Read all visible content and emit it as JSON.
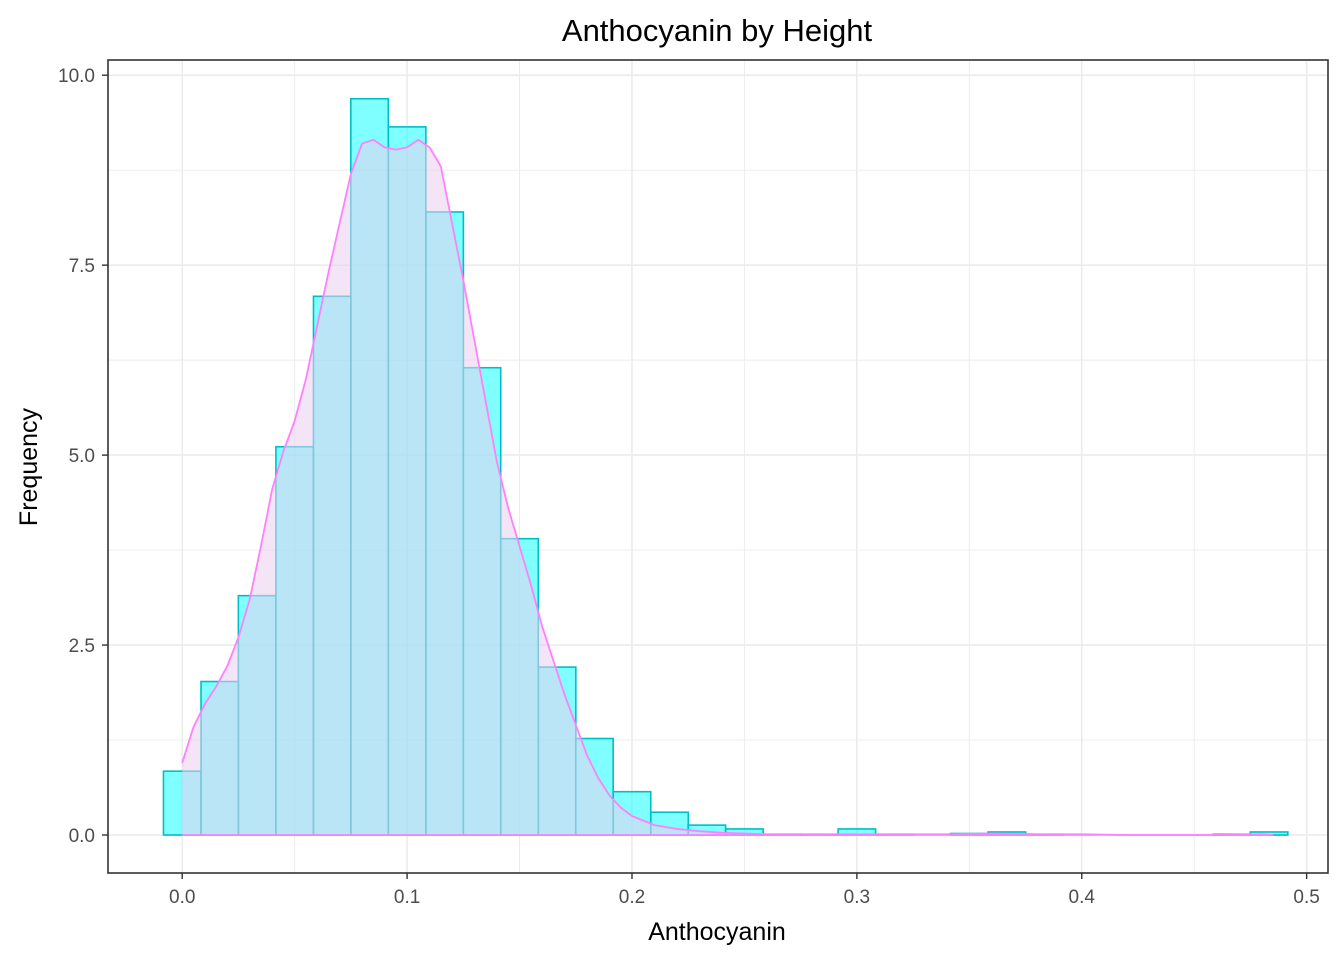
{
  "chart_data": {
    "type": "bar",
    "title": "Anthocyanin by Height",
    "xlabel": "Anthocyanin",
    "ylabel": "Frequency",
    "xlim": [
      -0.033,
      0.5095
    ],
    "ylim": [
      -0.5,
      10.2
    ],
    "x_ticks": [
      0.0,
      0.1,
      0.2,
      0.3,
      0.4,
      0.5
    ],
    "x_tick_labels": [
      "0.0",
      "0.1",
      "0.2",
      "0.3",
      "0.4",
      "0.5"
    ],
    "y_ticks": [
      0.0,
      2.5,
      5.0,
      7.5,
      10.0
    ],
    "y_tick_labels": [
      "0.0",
      "2.5",
      "5.0",
      "7.5",
      "10.0"
    ],
    "grid": true,
    "bin_width": 0.01667,
    "histogram": {
      "name": "",
      "fill": "#00FFFF",
      "stroke": "#00BFC4",
      "fill_opacity": 0.5,
      "bin_centers": [
        0.0,
        0.0167,
        0.0333,
        0.05,
        0.0667,
        0.0833,
        0.1,
        0.1167,
        0.1333,
        0.15,
        0.1667,
        0.1833,
        0.2,
        0.2167,
        0.2333,
        0.25,
        0.2667,
        0.2833,
        0.3,
        0.3167,
        0.3333,
        0.35,
        0.3667,
        0.3833,
        0.4,
        0.4167,
        0.4333,
        0.45,
        0.4667,
        0.4833
      ],
      "values": [
        0.84,
        2.02,
        3.15,
        5.11,
        7.09,
        9.69,
        9.32,
        8.2,
        6.15,
        3.9,
        2.21,
        1.27,
        0.57,
        0.3,
        0.13,
        0.08,
        0.01,
        0.01,
        0.08,
        0.01,
        0.0,
        0.02,
        0.04,
        0.01,
        0.0,
        0.0,
        0.0,
        0.0,
        0.01,
        0.04
      ]
    },
    "density": {
      "name": "",
      "stroke": "#FF80FF",
      "fill": "#E9D0EE",
      "fill_opacity": 0.55,
      "x": [
        0.0,
        0.005,
        0.01,
        0.015,
        0.02,
        0.025,
        0.03,
        0.035,
        0.04,
        0.045,
        0.05,
        0.055,
        0.06,
        0.065,
        0.07,
        0.075,
        0.08,
        0.085,
        0.09,
        0.095,
        0.1,
        0.105,
        0.11,
        0.115,
        0.12,
        0.125,
        0.13,
        0.135,
        0.14,
        0.145,
        0.15,
        0.155,
        0.16,
        0.165,
        0.17,
        0.175,
        0.18,
        0.185,
        0.19,
        0.195,
        0.2,
        0.21,
        0.22,
        0.23,
        0.24,
        0.25,
        0.26,
        0.28,
        0.3,
        0.32,
        0.34,
        0.36,
        0.38,
        0.4,
        0.42,
        0.44,
        0.46,
        0.48,
        0.485
      ],
      "y": [
        0.95,
        1.42,
        1.72,
        1.95,
        2.22,
        2.6,
        3.1,
        3.8,
        4.55,
        5.05,
        5.45,
        6.0,
        6.7,
        7.4,
        8.05,
        8.7,
        9.1,
        9.15,
        9.05,
        9.02,
        9.05,
        9.15,
        9.05,
        8.8,
        8.05,
        7.3,
        6.5,
        5.7,
        4.9,
        4.3,
        3.8,
        3.3,
        2.75,
        2.3,
        1.85,
        1.45,
        1.05,
        0.75,
        0.52,
        0.36,
        0.25,
        0.13,
        0.08,
        0.05,
        0.03,
        0.02,
        0.01,
        0.01,
        0.01,
        0.01,
        0.01,
        0.02,
        0.01,
        0.01,
        0.0,
        0.0,
        0.0,
        0.01,
        0.0
      ]
    }
  }
}
